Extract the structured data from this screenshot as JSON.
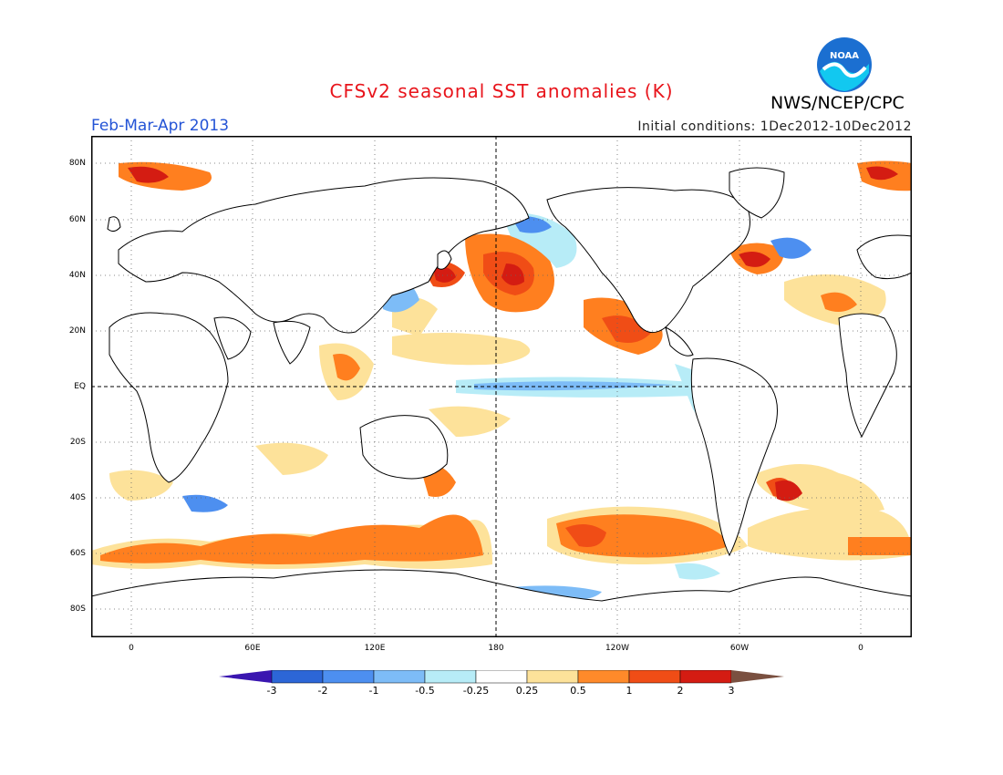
{
  "header": {
    "title": "CFSv2 seasonal SST anomalies (K)",
    "agency": "NWS/NCEP/CPC",
    "period": "Feb-Mar-Apr 2013",
    "initial_conditions": "Initial conditions: 1Dec2012-10Dec2012",
    "logo_text": "NOAA"
  },
  "map": {
    "lat_labels": [
      "80N",
      "60N",
      "40N",
      "20N",
      "EQ",
      "20S",
      "40S",
      "60S",
      "80S"
    ],
    "lon_labels": [
      "0",
      "60E",
      "120E",
      "180",
      "120W",
      "60W",
      "0"
    ],
    "colors": {
      "deep_blue": "#2c66d7",
      "blue": "#4d8ff0",
      "light_blue": "#7dbcf7",
      "pale_blue": "#b7ecf7",
      "pale_yellow": "#fde29a",
      "orange": "#ff7f1f",
      "dark_orange": "#f04d16",
      "red": "#d41c12",
      "coastline": "#000000"
    }
  },
  "colorbar": {
    "labels": [
      "-3",
      "-2",
      "-1",
      "-0.5",
      "-0.25",
      "0.25",
      "0.5",
      "1",
      "2",
      "3"
    ],
    "colors": [
      "#0e3fbf",
      "#2c66d7",
      "#4d8ff0",
      "#7dbcf7",
      "#b7ecf7",
      "#ffffff",
      "#fde29a",
      "#ff8a2a",
      "#f04d16",
      "#d41c12",
      "#a8160e"
    ],
    "left_arrow_color": "#3a16b0",
    "right_arrow_color": "#7a5040"
  }
}
